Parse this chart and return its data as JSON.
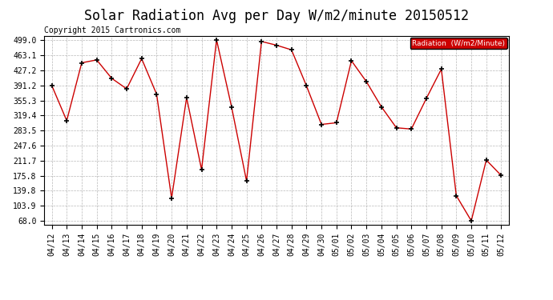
{
  "title": "Solar Radiation Avg per Day W/m2/minute 20150512",
  "copyright": "Copyright 2015 Cartronics.com",
  "legend_label": "Radiation  (W/m2/Minute)",
  "x_labels": [
    "04/12",
    "04/13",
    "04/14",
    "04/15",
    "04/16",
    "04/17",
    "04/18",
    "04/19",
    "04/20",
    "04/21",
    "04/22",
    "04/23",
    "04/24",
    "04/25",
    "04/26",
    "04/27",
    "04/28",
    "04/29",
    "04/30",
    "05/01",
    "05/02",
    "05/03",
    "05/04",
    "05/05",
    "05/06",
    "05/07",
    "05/08",
    "05/09",
    "05/10",
    "05/11",
    "05/12"
  ],
  "y_values": [
    391.2,
    307.0,
    445.0,
    452.0,
    408.0,
    383.0,
    455.0,
    370.0,
    122.0,
    362.0,
    190.0,
    500.0,
    340.0,
    163.0,
    496.0,
    487.0,
    476.0,
    390.0,
    298.0,
    302.0,
    450.0,
    400.0,
    340.0,
    290.0,
    287.0,
    360.0,
    430.0,
    128.0,
    68.0,
    213.0,
    176.0
  ],
  "yticks": [
    68.0,
    103.9,
    139.8,
    175.8,
    211.7,
    247.6,
    283.5,
    319.4,
    355.3,
    391.2,
    427.2,
    463.1,
    499.0
  ],
  "line_color": "#cc0000",
  "marker_color": "#000000",
  "bg_color": "#ffffff",
  "grid_color": "#999999",
  "legend_bg": "#cc0000",
  "legend_text_color": "#ffffff",
  "title_fontsize": 12,
  "copyright_fontsize": 7,
  "tick_fontsize": 7,
  "ymin": 68.0,
  "ymax": 499.0
}
